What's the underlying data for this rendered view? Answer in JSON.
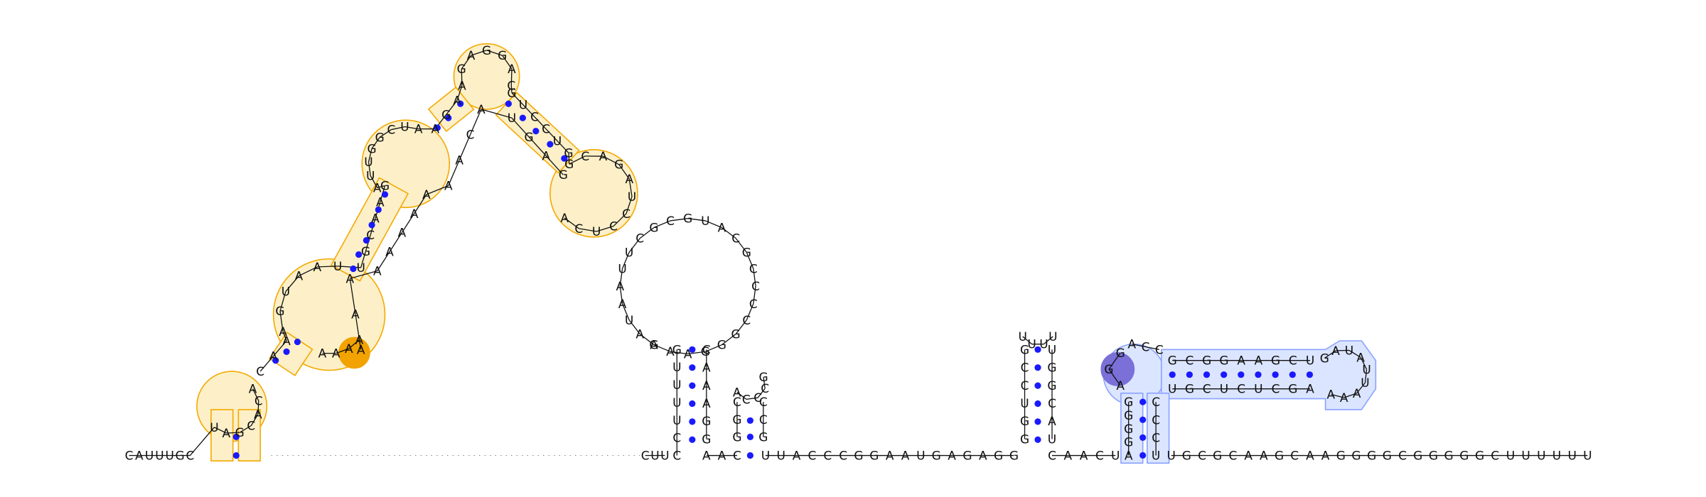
{
  "rna_structure": {
    "backbone_left": "CAUUUGC",
    "hairpin1": {
      "loop": "UAGCACA",
      "stem_left": "CAAAGUAAUUGCAAGAUUGGCUAAGAAGAGGACGUCCUGGCAGAUCCUCACAA",
      "stem_right": "GAGUAC"
    },
    "linker_dots": 52,
    "domain2": {
      "prefix": "CUU",
      "stem_left": "CCUUUUG",
      "loop": "AAAGGGCCCCGCAUGCGCUUAAUAG",
      "stem_right": "CAAAGG",
      "junction": "AAC",
      "mini_stem_left": "GGC",
      "mini_loop": "ACCCG",
      "mini_stem_right": "CCG"
    },
    "middle": "UUACCCGGAAUGAGAGG",
    "hairpin3": {
      "stem_left": "GGUCCG",
      "loop": "UUUU",
      "stem_right": "UGGCAU"
    },
    "spacer": "CAACU",
    "domain4": {
      "stem_left": "AGGGG",
      "bulge": "AGG",
      "loop_left": "ACC",
      "inner_top": "GCGGAAGCU",
      "inner_loop": "GAUAUUAAA",
      "inner_bottom": "AGCUCUCGU",
      "stem_right": "CCCU"
    },
    "backbone_right": "UGCGCAAGCAAGGGGCGGGGGCUUUUUU",
    "colors": {
      "helix_orange": "#f4a900",
      "helix_orange_fill": "#fdf0c8",
      "highlight_orange": "#f2a300",
      "helix_blue": "#8aa2ff",
      "helix_blue_fill": "#dbe5ff",
      "highlight_purple": "#7a70d8",
      "pair_dot": "#1a1aff",
      "backbone": "#111111"
    }
  }
}
